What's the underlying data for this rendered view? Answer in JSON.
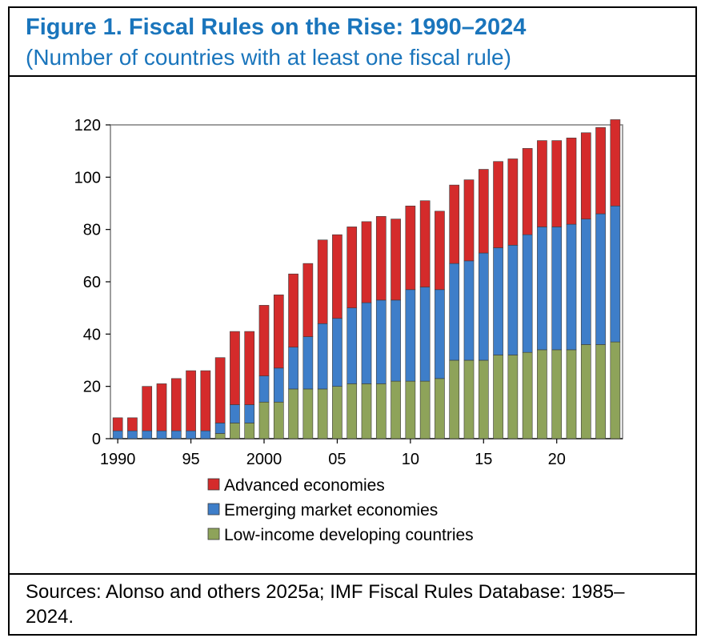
{
  "header": {
    "title": "Figure 1. Fiscal Rules on the Rise: 1990–2024",
    "subtitle": "(Number of countries with at least one fiscal rule)"
  },
  "footer": {
    "source": "Sources: Alonso and others 2025a; IMF Fiscal Rules Database: 1985–2024."
  },
  "chart_data": {
    "type": "bar",
    "stacked": true,
    "x": [
      1990,
      1991,
      1992,
      1993,
      1994,
      1995,
      1996,
      1997,
      1998,
      1999,
      2000,
      2001,
      2002,
      2003,
      2004,
      2005,
      2006,
      2007,
      2008,
      2009,
      2010,
      2011,
      2012,
      2013,
      2014,
      2015,
      2016,
      2017,
      2018,
      2019,
      2020,
      2021,
      2022,
      2023,
      2024
    ],
    "xtick_labels": [
      {
        "x": 1990,
        "label": "1990"
      },
      {
        "x": 1995,
        "label": "95"
      },
      {
        "x": 2000,
        "label": "2000"
      },
      {
        "x": 2005,
        "label": "05"
      },
      {
        "x": 2010,
        "label": "10"
      },
      {
        "x": 2015,
        "label": "15"
      },
      {
        "x": 2020,
        "label": "20"
      }
    ],
    "ylim": [
      0,
      120
    ],
    "yticks": [
      0,
      20,
      40,
      60,
      80,
      100,
      120
    ],
    "legend_position": "bottom",
    "series": [
      {
        "name": "Low-income developing countries",
        "color": "#8ea35a",
        "values": [
          0,
          0,
          0,
          0,
          0,
          0,
          0,
          2,
          6,
          6,
          14,
          14,
          19,
          19,
          19,
          20,
          21,
          21,
          21,
          22,
          22,
          22,
          23,
          30,
          30,
          30,
          32,
          32,
          33,
          34,
          34,
          34,
          36,
          36,
          37
        ]
      },
      {
        "name": "Emerging market economies",
        "color": "#3e7ec9",
        "values": [
          3,
          3,
          3,
          3,
          3,
          3,
          3,
          4,
          7,
          7,
          10,
          13,
          16,
          20,
          25,
          26,
          29,
          31,
          32,
          31,
          35,
          36,
          34,
          37,
          38,
          41,
          41,
          42,
          45,
          47,
          47,
          48,
          48,
          50,
          52
        ]
      },
      {
        "name": "Advanced economies",
        "color": "#d42b2b",
        "values": [
          5,
          5,
          17,
          18,
          20,
          23,
          23,
          25,
          28,
          28,
          27,
          28,
          28,
          28,
          32,
          32,
          31,
          31,
          32,
          31,
          32,
          33,
          30,
          30,
          31,
          32,
          33,
          33,
          33,
          33,
          33,
          33,
          33,
          33,
          33
        ]
      }
    ],
    "legend_order": [
      "Advanced economies",
      "Emerging market economies",
      "Low-income developing countries"
    ]
  }
}
